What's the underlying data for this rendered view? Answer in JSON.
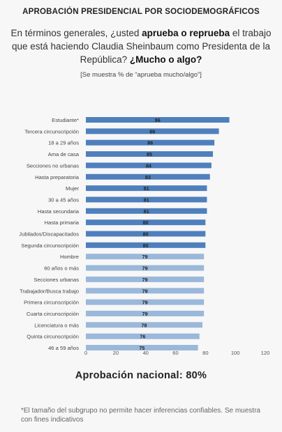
{
  "header": {
    "title": "APROBACIÓN PRESIDENCIAL POR SOCIODEMOGRÁFICOS"
  },
  "question": {
    "part1": "En términos generales, ¿usted ",
    "bold1": "aprueba o reprueba",
    "part2": " el trabajo que está haciendo Claudia Sheinbaum como Presidenta de la República? ",
    "bold2": "¿Mucho o algo?"
  },
  "sample_note": "[Se muestra % de “aprueba mucho/algo”]",
  "national": "Aprobación nacional: 80%",
  "footnote": "*El tamaño del subgrupo no permite hacer inferencias confiables. Se muestra con fines indicativos",
  "colors": {
    "dark_bar": "#4f7fbd",
    "light_bar": "#9ab8da",
    "axis_text": "#555555"
  },
  "chart_data": {
    "type": "bar",
    "orientation": "horizontal",
    "categories": [
      "Estudiante*",
      "Tercera circunscripción",
      "18 a 29 años",
      "Ama de casa",
      "Secciones no urbanas",
      "Hasta preparatoria",
      "Mujer",
      "30 a 45 años",
      "Hasta secundaria",
      "Hasta primaria",
      "Jubilados/Discapacitados",
      "Segunda circunscripción",
      "Hombre",
      "60 años o más",
      "Secciones urbanas",
      "Trabajador/Busca trabajo",
      "Primera circunscripción",
      "Cuarta circunscripción",
      "Licenciatura o más",
      "Quinta circunscripción",
      "46 a 59 años"
    ],
    "values": [
      96,
      89,
      86,
      85,
      84,
      83,
      81,
      81,
      81,
      80,
      80,
      80,
      79,
      79,
      79,
      79,
      79,
      79,
      78,
      76,
      75
    ],
    "color_groups": [
      "dark",
      "dark",
      "dark",
      "dark",
      "dark",
      "dark",
      "dark",
      "dark",
      "dark",
      "dark",
      "dark",
      "dark",
      "light",
      "light",
      "light",
      "light",
      "light",
      "light",
      "light",
      "light",
      "light"
    ],
    "xlim": [
      0,
      120
    ],
    "xticks": [
      0,
      20,
      40,
      60,
      80,
      100,
      120
    ],
    "grid": false,
    "legend": "none"
  }
}
